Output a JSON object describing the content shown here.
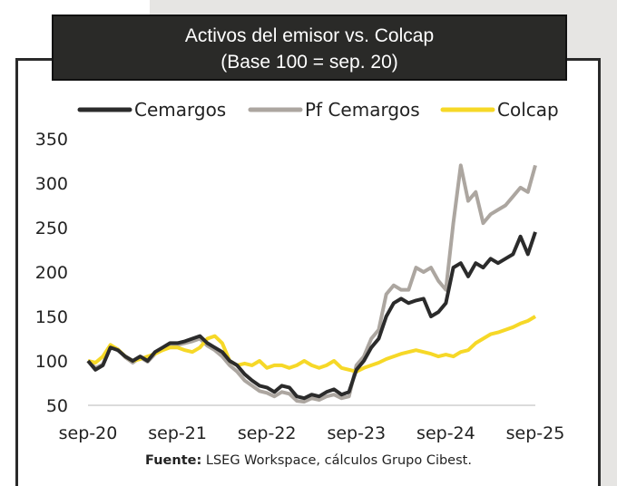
{
  "title_line1": "Activos del emisor vs. Colcap",
  "title_line2": "(Base 100 = sep. 20)",
  "source_label": "Fuente:",
  "source_text": " LSEG Workspace, cálculos Grupo Cibest.",
  "chart_data": {
    "type": "line",
    "title": "Activos del emisor vs. Colcap (Base 100 = sep. 20)",
    "xlabel": "",
    "ylabel": "",
    "ylim": [
      50,
      350
    ],
    "yticks": [
      "350",
      "300",
      "250",
      "200",
      "150",
      "100",
      "50"
    ],
    "ytick_values": [
      350,
      300,
      250,
      200,
      150,
      100,
      50
    ],
    "xticks": [
      "sep-20",
      "sep-21",
      "sep-22",
      "sep-23",
      "sep-24",
      "sep-25"
    ],
    "x_note": "monthly points from sep-20 to sep-25 (approximate)",
    "legend_position": "top",
    "series": [
      {
        "name": "Cemargos",
        "color": "#2b2b2b",
        "values": [
          100,
          90,
          95,
          115,
          112,
          105,
          100,
          105,
          100,
          110,
          115,
          120,
          120,
          122,
          125,
          128,
          120,
          115,
          110,
          100,
          95,
          85,
          78,
          72,
          70,
          65,
          72,
          70,
          60,
          58,
          62,
          60,
          65,
          68,
          62,
          65,
          90,
          100,
          115,
          125,
          150,
          165,
          170,
          165,
          168,
          170,
          150,
          155,
          165,
          205,
          210,
          195,
          210,
          205,
          215,
          210,
          215,
          220,
          240,
          220,
          245
        ]
      },
      {
        "name": "Pf Cemargos",
        "color": "#aca6a0",
        "values": [
          100,
          92,
          96,
          117,
          113,
          104,
          98,
          104,
          99,
          108,
          113,
          118,
          118,
          120,
          122,
          125,
          117,
          112,
          105,
          95,
          88,
          78,
          72,
          66,
          64,
          60,
          65,
          63,
          55,
          54,
          58,
          56,
          60,
          62,
          58,
          60,
          95,
          105,
          125,
          135,
          175,
          185,
          180,
          180,
          205,
          200,
          205,
          190,
          180,
          255,
          320,
          280,
          290,
          255,
          265,
          270,
          275,
          285,
          295,
          290,
          320
        ]
      },
      {
        "name": "Colcap",
        "color": "#f6d827",
        "values": [
          100,
          98,
          105,
          118,
          113,
          105,
          100,
          102,
          105,
          108,
          112,
          115,
          115,
          112,
          110,
          115,
          125,
          128,
          120,
          100,
          95,
          97,
          95,
          100,
          92,
          95,
          95,
          92,
          95,
          100,
          95,
          92,
          95,
          100,
          92,
          90,
          88,
          92,
          95,
          98,
          102,
          105,
          108,
          110,
          112,
          110,
          108,
          105,
          107,
          105,
          110,
          112,
          120,
          125,
          130,
          132,
          135,
          138,
          142,
          145,
          150
        ]
      }
    ]
  }
}
